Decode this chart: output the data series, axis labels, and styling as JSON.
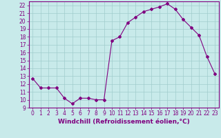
{
  "x": [
    0,
    1,
    2,
    3,
    4,
    5,
    6,
    7,
    8,
    9,
    10,
    11,
    12,
    13,
    14,
    15,
    16,
    17,
    18,
    19,
    20,
    21,
    22,
    23
  ],
  "y": [
    12.7,
    11.5,
    11.5,
    11.5,
    10.2,
    9.5,
    10.2,
    10.2,
    10.0,
    10.0,
    17.5,
    18.0,
    19.8,
    20.5,
    21.2,
    21.5,
    21.8,
    22.2,
    21.5,
    20.2,
    19.2,
    18.2,
    15.5,
    13.3
  ],
  "line_color": "#800080",
  "marker": "D",
  "marker_size": 2,
  "bg_color": "#c8eaea",
  "grid_color": "#a0cccc",
  "xlabel": "Windchill (Refroidissement éolien,°C)",
  "ylabel": "",
  "xlim": [
    -0.5,
    23.5
  ],
  "ylim": [
    9,
    22.5
  ],
  "yticks": [
    9,
    10,
    11,
    12,
    13,
    14,
    15,
    16,
    17,
    18,
    19,
    20,
    21,
    22
  ],
  "xticks": [
    0,
    1,
    2,
    3,
    4,
    5,
    6,
    7,
    8,
    9,
    10,
    11,
    12,
    13,
    14,
    15,
    16,
    17,
    18,
    19,
    20,
    21,
    22,
    23
  ],
  "tick_label_fontsize": 5.5,
  "xlabel_fontsize": 6.5,
  "axis_color": "#800080",
  "tick_color": "#800080",
  "spine_color": "#800080"
}
